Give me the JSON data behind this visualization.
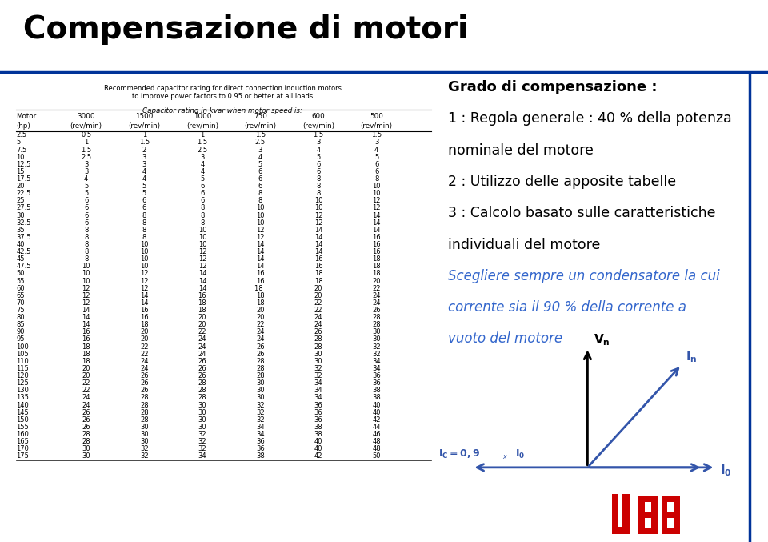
{
  "title": "Compensazione di motori",
  "title_fontsize": 28,
  "bg_color": "#ffffff",
  "accent_line_color": "#003399",
  "table_title_line1": "Recommended capacitor rating for direct connection induction motors",
  "table_title_line2": "to improve power factors to 0.95 or better at all loads",
  "table_subtitle": "Capacitor rating in kvar when motor speed is:",
  "table_headers_row1": [
    "Motor",
    "3000",
    "1500",
    "1000",
    "750",
    "600",
    "500"
  ],
  "table_headers_row2": [
    "(hp)",
    "(rev/min)",
    "(rev/min)",
    "(rev/min)",
    "(rev/min)",
    "(rev/min)",
    "(rev/min)"
  ],
  "table_data": [
    [
      "2.5",
      "0.5",
      "1",
      "1",
      "1.5",
      "1.5",
      "1.5"
    ],
    [
      "5",
      "1",
      "1.5",
      "1.5",
      "2.5",
      "3",
      "3"
    ],
    [
      "7.5",
      "1.5",
      "2",
      "2.5",
      "3",
      "4",
      "4"
    ],
    [
      "10",
      "2.5",
      "3",
      "3",
      "4",
      "5",
      "5"
    ],
    [
      "12.5",
      "3",
      "3",
      "4",
      "5",
      "6",
      "6"
    ],
    [
      "15",
      "3",
      "4",
      "4",
      "6",
      "6",
      "6"
    ],
    [
      "17.5",
      "4",
      "4",
      "5",
      "6",
      "8",
      "8"
    ],
    [
      "20",
      "5",
      "5",
      "6",
      "6",
      "8",
      "10"
    ],
    [
      "22.5",
      "5",
      "5",
      "6",
      "8",
      "8",
      "10"
    ],
    [
      "25",
      "6",
      "6",
      "6",
      "8",
      "10",
      "12"
    ],
    [
      "27.5",
      "6",
      "6",
      "8",
      "10",
      "10",
      "12"
    ],
    [
      "30",
      "6",
      "8",
      "8",
      "10",
      "12",
      "14"
    ],
    [
      "32.5",
      "6",
      "8",
      "8",
      "10",
      "12",
      "14"
    ],
    [
      "35",
      "8",
      "8",
      "10",
      "12",
      "14",
      "14"
    ],
    [
      "37.5",
      "8",
      "8",
      "10",
      "12",
      "14",
      "16"
    ],
    [
      "40",
      "8",
      "10",
      "10",
      "14",
      "14",
      "16"
    ],
    [
      "42.5",
      "8",
      "10",
      "12",
      "14",
      "14",
      "16"
    ],
    [
      "45",
      "8",
      "10",
      "12",
      "14",
      "16",
      "18"
    ],
    [
      "47.5",
      "10",
      "10",
      "12",
      "14",
      "16",
      "18"
    ],
    [
      "50",
      "10",
      "12",
      "14",
      "16",
      "18",
      "18"
    ],
    [
      "55",
      "10",
      "12",
      "14",
      "16",
      "18",
      "20"
    ],
    [
      "60",
      "12",
      "12",
      "14",
      "18 .",
      "20",
      "22"
    ],
    [
      "65",
      "12",
      "14",
      "16",
      "18",
      "20",
      "24"
    ],
    [
      "70",
      "12",
      "14",
      "18",
      "18",
      "22",
      "24"
    ],
    [
      "75",
      "14",
      "16",
      "18",
      "20",
      "22",
      "26"
    ],
    [
      "80",
      "14",
      "16",
      "20",
      "20",
      "24",
      "28"
    ],
    [
      "85",
      "14",
      "18",
      "20",
      "22",
      "24",
      "28"
    ],
    [
      "90",
      "16",
      "20",
      "22",
      "24",
      "26",
      "30"
    ],
    [
      "95",
      "16",
      "20",
      "24",
      "24",
      "28",
      "30"
    ],
    [
      "100",
      "18",
      "22",
      "24",
      "26",
      "28",
      "32"
    ],
    [
      "105",
      "18",
      "22",
      "24",
      "26",
      "30",
      "32"
    ],
    [
      "110",
      "18",
      "24",
      "26",
      "28",
      "30",
      "34"
    ],
    [
      "115",
      "20",
      "24",
      "26",
      "28",
      "32",
      "34"
    ],
    [
      "120",
      "20",
      "26",
      "26",
      "28",
      "32",
      "36"
    ],
    [
      "125",
      "22",
      "26",
      "28",
      "30",
      "34",
      "36"
    ],
    [
      "130",
      "22",
      "26",
      "28",
      "30",
      "34",
      "38"
    ],
    [
      "135",
      "24",
      "28",
      "28",
      "30",
      "34",
      "38"
    ],
    [
      "140",
      "24",
      "28",
      "30",
      "32",
      "36",
      "40"
    ],
    [
      "145",
      "26",
      "28",
      "30",
      "32",
      "36",
      "40"
    ],
    [
      "150",
      "26",
      "28",
      "30",
      "32",
      "36",
      "42"
    ],
    [
      "155",
      "26",
      "30",
      "30",
      "34",
      "38",
      "44"
    ],
    [
      "160",
      "28",
      "30",
      "32",
      "34",
      "38",
      "46"
    ],
    [
      "165",
      "28",
      "30",
      "32",
      "36",
      "40",
      "48"
    ],
    [
      "170",
      "30",
      "32",
      "32",
      "36",
      "40",
      "48"
    ],
    [
      "175",
      "30",
      "32",
      "34",
      "38",
      "42",
      "50"
    ]
  ],
  "text_block": [
    {
      "text": "Grado di compensazione :",
      "bold": true,
      "fontsize": 13,
      "color": "#000000",
      "italic": false
    },
    {
      "text": "1 : Regola generale : 40 % della potenza",
      "bold": false,
      "fontsize": 12.5,
      "color": "#000000",
      "italic": false
    },
    {
      "text": "nominale del motore",
      "bold": false,
      "fontsize": 12.5,
      "color": "#000000",
      "italic": false
    },
    {
      "text": "2 : Utilizzo delle apposite tabelle",
      "bold": false,
      "fontsize": 12.5,
      "color": "#000000",
      "italic": false
    },
    {
      "text": "3 : Calcolo basato sulle caratteristiche",
      "bold": false,
      "fontsize": 12.5,
      "color": "#000000",
      "italic": false
    },
    {
      "text": "individuali del motore",
      "bold": false,
      "fontsize": 12.5,
      "color": "#000000",
      "italic": false
    },
    {
      "text": "Scegliere sempre un condensatore la cui",
      "bold": false,
      "fontsize": 12,
      "color": "#3366cc",
      "italic": true
    },
    {
      "text": "corrente sia il 90 % della corrente a",
      "bold": false,
      "fontsize": 12,
      "color": "#3366cc",
      "italic": true
    },
    {
      "text": "vuoto del motore",
      "bold": false,
      "fontsize": 12,
      "color": "#3366cc",
      "italic": true
    }
  ],
  "arrow_color": "#3355aa",
  "abb_logo_color": "#cc0000"
}
